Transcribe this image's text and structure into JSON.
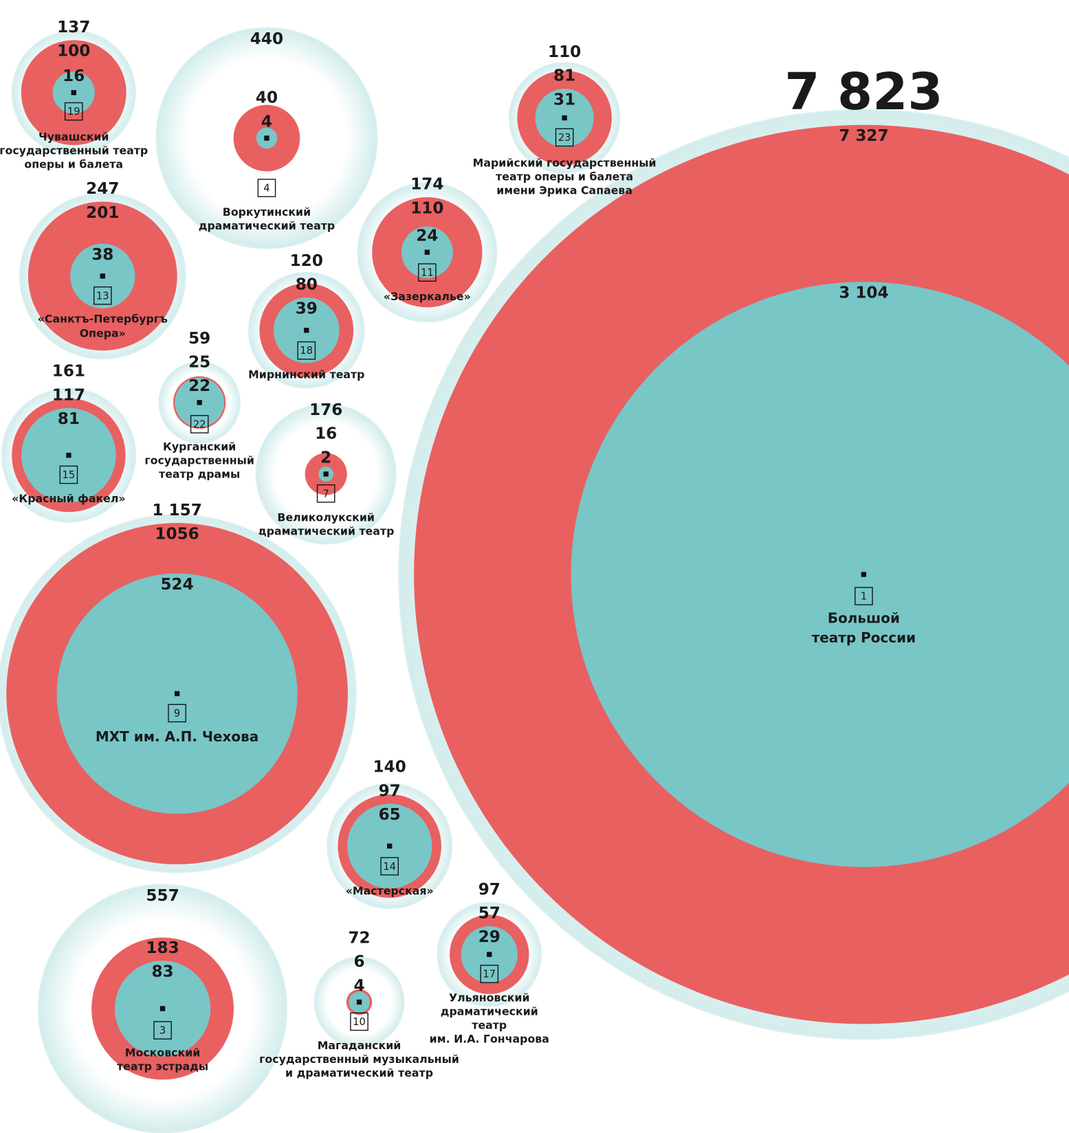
{
  "chart_data": {
    "type": "nested-bubble",
    "colors": [
      "#d3ecec",
      "#e96061",
      "#79c6c7"
    ],
    "theatres": [
      {
        "rank": 1,
        "name": [
          "Большой",
          "театр России"
        ],
        "values": [
          7823,
          7327,
          3104
        ],
        "value_labels": [
          "7 823",
          "7 327",
          "3 104"
        ]
      },
      {
        "rank": 19,
        "name": [
          "Чувашский",
          "государственный театр",
          "оперы и балета"
        ],
        "values": [
          137,
          100,
          16
        ]
      },
      {
        "rank": 4,
        "name": [
          "Воркутинский",
          "драматический театр"
        ],
        "values": [
          440,
          40,
          4
        ]
      },
      {
        "rank": 23,
        "name": [
          "Марийский государственный",
          "театр оперы и балета",
          "имени Эрика Сапаева"
        ],
        "values": [
          110,
          81,
          31
        ]
      },
      {
        "rank": 13,
        "name": [
          "«Санктъ-Петербургъ",
          "Опера»"
        ],
        "values": [
          247,
          201,
          38
        ]
      },
      {
        "rank": 11,
        "name": [
          "«Зазеркалье»"
        ],
        "values": [
          174,
          110,
          24
        ]
      },
      {
        "rank": 18,
        "name": [
          "Мирнинский театр"
        ],
        "values": [
          120,
          80,
          39
        ]
      },
      {
        "rank": 22,
        "name": [
          "Курганский",
          "государственный",
          "театр драмы"
        ],
        "values": [
          59,
          25,
          22
        ]
      },
      {
        "rank": 15,
        "name": [
          "«Красный факел»"
        ],
        "values": [
          161,
          117,
          81
        ]
      },
      {
        "rank": 7,
        "name": [
          "Великолукский",
          "драматический театр"
        ],
        "values": [
          176,
          16,
          2
        ]
      },
      {
        "rank": 9,
        "name": [
          "МХТ им. А.П. Чехова"
        ],
        "values": [
          1157,
          1056,
          524
        ],
        "value_labels": [
          "1 157",
          "1056",
          "524"
        ]
      },
      {
        "rank": 14,
        "name": [
          "«Мастерская»"
        ],
        "values": [
          140,
          97,
          65
        ]
      },
      {
        "rank": 3,
        "name": [
          "Московский",
          "театр эстрады"
        ],
        "values": [
          557,
          183,
          83
        ]
      },
      {
        "rank": 10,
        "name": [
          "Магаданский",
          "государственный музыкальный",
          "и драматический театр"
        ],
        "values": [
          72,
          6,
          4
        ]
      },
      {
        "rank": 17,
        "name": [
          "Ульяновский",
          "драматический",
          "театр",
          "им. И.А. Гончарова"
        ],
        "values": [
          97,
          57,
          29
        ]
      }
    ]
  }
}
